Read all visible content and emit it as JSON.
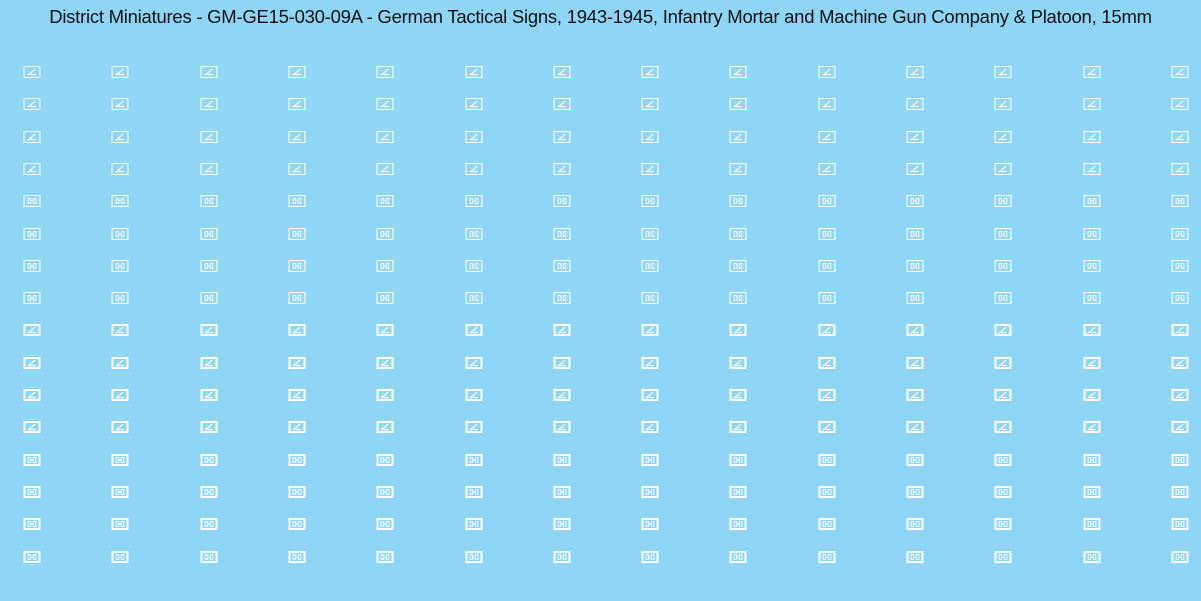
{
  "title": "District Miniatures - GM-GE15-030-09A - German Tactical Signs, 1943-1945, Infantry Mortar and Machine Gun Company & Platoon, 15mm",
  "colors": {
    "background": "#8fd6f6",
    "sign": "#ffffff",
    "title": "#111111"
  },
  "sign_types": {
    "mortar": "mortar-sign",
    "machine_gun": "machine-gun-sign"
  },
  "rows": [
    {
      "sign": "mortar",
      "count": 14,
      "style": "outline"
    },
    {
      "sign": "mortar",
      "count": 14,
      "style": "outline"
    },
    {
      "sign": "mortar",
      "count": 14,
      "style": "outline"
    },
    {
      "sign": "mortar",
      "count": 14,
      "style": "outline"
    },
    {
      "sign": "machine_gun",
      "count": 14,
      "style": "outline"
    },
    {
      "sign": "machine_gun",
      "count": 14,
      "style": "outline"
    },
    {
      "sign": "machine_gun",
      "count": 14,
      "style": "outline"
    },
    {
      "sign": "machine_gun",
      "count": 14,
      "style": "outline"
    },
    {
      "sign": "mortar",
      "count": 14,
      "style": "solid"
    },
    {
      "sign": "mortar",
      "count": 14,
      "style": "solid"
    },
    {
      "sign": "mortar",
      "count": 14,
      "style": "solid"
    },
    {
      "sign": "mortar",
      "count": 14,
      "style": "solid"
    },
    {
      "sign": "machine_gun",
      "count": 14,
      "style": "solid"
    },
    {
      "sign": "machine_gun",
      "count": 14,
      "style": "solid"
    },
    {
      "sign": "machine_gun",
      "count": 14,
      "style": "solid"
    },
    {
      "sign": "machine_gun",
      "count": 14,
      "style": "solid"
    }
  ]
}
